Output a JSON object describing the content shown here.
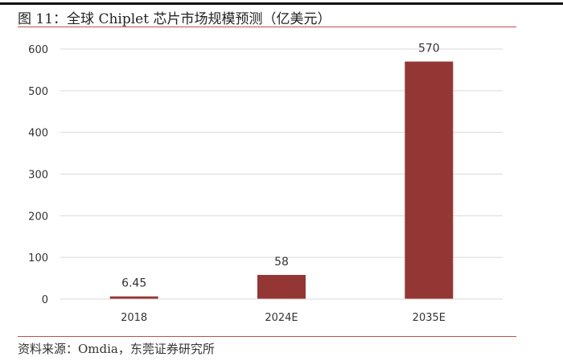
{
  "figure": {
    "title": "图 11：全球 Chiplet 芯片市场规模预测（亿美元）",
    "source": "资料来源：Omdia，东莞证券研究所"
  },
  "chart_data": {
    "type": "bar",
    "categories": [
      "2018",
      "2024E",
      "2035E"
    ],
    "values": [
      6.45,
      58,
      570
    ],
    "data_labels": [
      "6.45",
      "58",
      "570"
    ],
    "title": "全球 Chiplet 芯片市场规模预测（亿美元）",
    "xlabel": "",
    "ylabel": "",
    "ylim": [
      0,
      600
    ],
    "yticks": [
      0,
      100,
      200,
      300,
      400,
      500,
      600
    ],
    "grid": true,
    "legend": "none",
    "bar_color": "#943634",
    "grid_color": "#d9d9d9"
  }
}
